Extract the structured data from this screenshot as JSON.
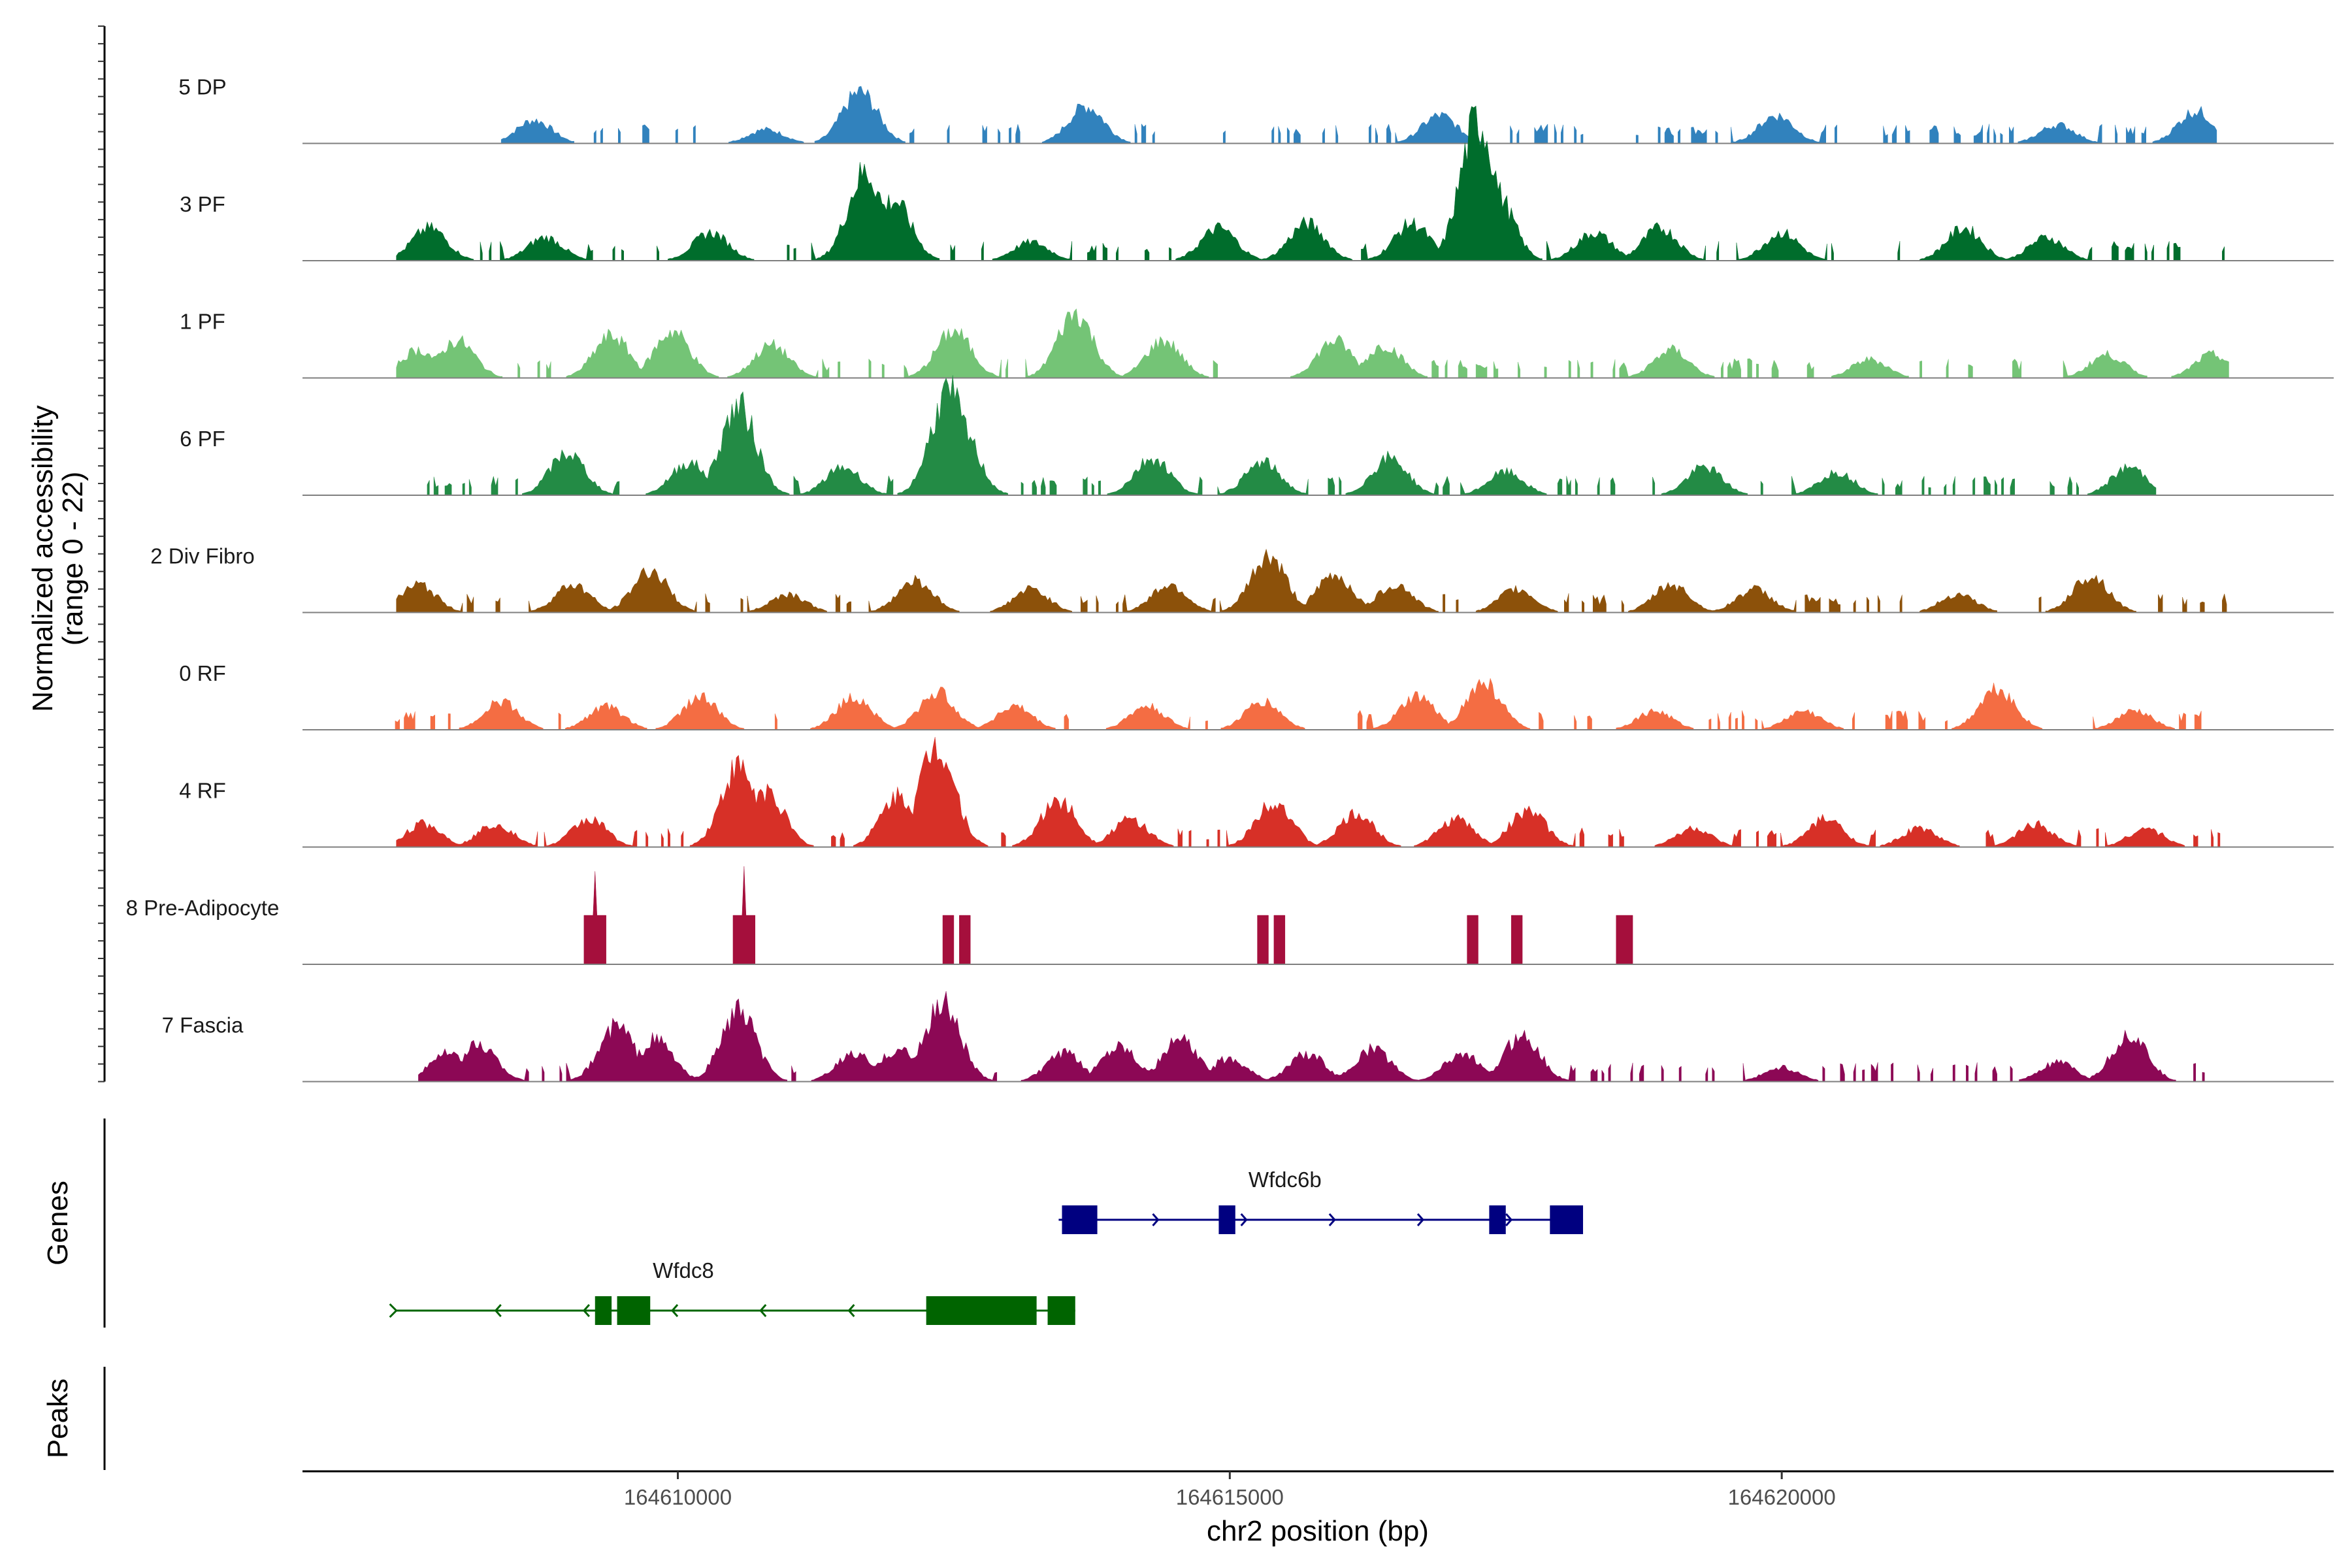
{
  "chart_data": {
    "type": "area",
    "subtype": "genome-coverage-track",
    "chromosome": "chr2",
    "xlabel": "chr2 position (bp)",
    "ylabel_line1": "Normalized accessibility",
    "ylabel_line2": "(range 0 - 22)",
    "y_range": [
      0,
      22
    ],
    "xlim": [
      164606600,
      164625000
    ],
    "x_ticks": [
      {
        "value": 164610000,
        "label": "164610000"
      },
      {
        "value": 164615000,
        "label": "164615000"
      },
      {
        "value": 164620000,
        "label": "164620000"
      }
    ],
    "series": [
      {
        "name": "5 DP",
        "color": "#3182bd",
        "data_start": 164608400,
        "data_end": 164623950,
        "peaks": [
          [
            164608700,
            5
          ],
          [
            164610800,
            3
          ],
          [
            164611650,
            11
          ],
          [
            164613700,
            8
          ],
          [
            164616900,
            6
          ],
          [
            164619950,
            6
          ],
          [
            164623750,
            7
          ],
          [
            164622500,
            4
          ]
        ]
      },
      {
        "name": "3 PF",
        "color": "#006d2c",
        "data_start": 164607450,
        "data_end": 164624050,
        "peaks": [
          [
            164607750,
            7
          ],
          [
            164608800,
            5
          ],
          [
            164610300,
            6
          ],
          [
            164611700,
            19
          ],
          [
            164611950,
            13
          ],
          [
            164613200,
            4
          ],
          [
            164614900,
            7
          ],
          [
            164615700,
            8
          ],
          [
            164616650,
            8
          ],
          [
            164617250,
            30
          ],
          [
            164617400,
            15
          ],
          [
            164618300,
            6
          ],
          [
            164618900,
            7
          ],
          [
            164620000,
            6
          ],
          [
            164621650,
            7
          ],
          [
            164622400,
            5
          ]
        ]
      },
      {
        "name": "1 PF",
        "color": "#74c476",
        "data_start": 164607450,
        "data_end": 164624050,
        "peaks": [
          [
            164607650,
            6
          ],
          [
            164608000,
            8
          ],
          [
            164609400,
            9
          ],
          [
            164609950,
            10
          ],
          [
            164610850,
            7
          ],
          [
            164612500,
            10
          ],
          [
            164613600,
            14
          ],
          [
            164614400,
            8
          ],
          [
            164615950,
            8
          ],
          [
            164616400,
            7
          ],
          [
            164619000,
            6
          ],
          [
            164620800,
            4
          ],
          [
            164622950,
            5
          ],
          [
            164623900,
            5
          ]
        ]
      },
      {
        "name": "6 PF",
        "color": "#238b45",
        "data_start": 164607650,
        "data_end": 164623400,
        "peaks": [
          [
            164609000,
            9
          ],
          [
            164610100,
            7
          ],
          [
            164610550,
            19
          ],
          [
            164611500,
            6
          ],
          [
            164612450,
            22
          ],
          [
            164612550,
            15
          ],
          [
            164614300,
            8
          ],
          [
            164615300,
            7
          ],
          [
            164616450,
            8
          ],
          [
            164617500,
            5
          ],
          [
            164619300,
            6
          ],
          [
            164620500,
            5
          ],
          [
            164623150,
            6
          ]
        ]
      },
      {
        "name": "2 Div Fibro",
        "color": "#8c510a",
        "data_start": 164607450,
        "data_end": 164624050,
        "peaks": [
          [
            164607650,
            6
          ],
          [
            164609050,
            6
          ],
          [
            164609750,
            9
          ],
          [
            164611000,
            4
          ],
          [
            164612150,
            7
          ],
          [
            164613200,
            5
          ],
          [
            164614450,
            6
          ],
          [
            164615350,
            12
          ],
          [
            164615950,
            8
          ],
          [
            164616500,
            6
          ],
          [
            164617600,
            5
          ],
          [
            164619000,
            6
          ],
          [
            164619750,
            5
          ],
          [
            164621600,
            4
          ],
          [
            164622800,
            8
          ]
        ]
      },
      {
        "name": "0 RF",
        "color": "#f46d43",
        "data_start": 164607400,
        "data_end": 164624050,
        "peaks": [
          [
            164608400,
            6
          ],
          [
            164609350,
            5
          ],
          [
            164610200,
            7
          ],
          [
            164611600,
            7
          ],
          [
            164612350,
            8
          ],
          [
            164613050,
            5
          ],
          [
            164614250,
            5
          ],
          [
            164615300,
            6
          ],
          [
            164616700,
            7
          ],
          [
            164617300,
            10
          ],
          [
            164618850,
            4
          ],
          [
            164620200,
            4
          ],
          [
            164621950,
            9
          ],
          [
            164623200,
            4
          ]
        ]
      },
      {
        "name": "4 RF",
        "color": "#d73027",
        "data_start": 164607450,
        "data_end": 164624050,
        "peaks": [
          [
            164607700,
            5
          ],
          [
            164608350,
            5
          ],
          [
            164609200,
            6
          ],
          [
            164610550,
            17
          ],
          [
            164610800,
            12
          ],
          [
            164612000,
            11
          ],
          [
            164612350,
            22
          ],
          [
            164613450,
            10
          ],
          [
            164614100,
            6
          ],
          [
            164615400,
            10
          ],
          [
            164616150,
            7
          ],
          [
            164617050,
            6
          ],
          [
            164617700,
            8
          ],
          [
            164619200,
            4
          ],
          [
            164620400,
            6
          ],
          [
            164621250,
            4
          ],
          [
            164622300,
            5
          ],
          [
            164623300,
            4
          ]
        ]
      },
      {
        "name": "8 Pre-Adipocyte",
        "color": "#a50f3c",
        "data_start": 164609000,
        "data_end": 164619000,
        "blocks": [
          [
            164609150,
            164609350,
            10,
            19
          ],
          [
            164610500,
            164610700,
            10,
            20
          ],
          [
            164612400,
            164612500,
            10,
            10
          ],
          [
            164612550,
            164612650,
            10,
            10
          ],
          [
            164615250,
            164615350,
            10,
            10
          ],
          [
            164615400,
            164615500,
            10,
            10
          ],
          [
            164617150,
            164617250,
            10,
            10
          ],
          [
            164617550,
            164617650,
            10,
            10
          ],
          [
            164618500,
            164618650,
            10,
            10
          ]
        ]
      },
      {
        "name": "7 Fascia",
        "color": "#8c0855",
        "data_start": 164607650,
        "data_end": 164624050,
        "peaks": [
          [
            164607900,
            6
          ],
          [
            164608200,
            8
          ],
          [
            164609450,
            12
          ],
          [
            164609800,
            9
          ],
          [
            164610550,
            15
          ],
          [
            164611600,
            6
          ],
          [
            164612000,
            7
          ],
          [
            164612400,
            17
          ],
          [
            164613500,
            6
          ],
          [
            164614000,
            8
          ],
          [
            164614550,
            9
          ],
          [
            164615000,
            5
          ],
          [
            164615700,
            6
          ],
          [
            164616300,
            7
          ],
          [
            164617100,
            6
          ],
          [
            164617650,
            10
          ],
          [
            164620000,
            3
          ],
          [
            164622500,
            4
          ],
          [
            164623150,
            10
          ]
        ]
      }
    ],
    "genes": [
      {
        "name": "Wfdc6b",
        "color": "#000080",
        "strand": "+",
        "start": 164613450,
        "end": 164618200,
        "exons": [
          [
            164613480,
            164613800
          ],
          [
            164614900,
            164615050
          ],
          [
            164617350,
            164617500
          ],
          [
            164617900,
            164618200
          ]
        ],
        "label_x": 164615500
      },
      {
        "name": "Wfdc8",
        "color": "#006400",
        "strand": "-",
        "start": 164607450,
        "end": 164613600,
        "exons": [
          [
            164609250,
            164609400
          ],
          [
            164609450,
            164609750
          ],
          [
            164612250,
            164613250
          ],
          [
            164613350,
            164613600
          ]
        ],
        "label_x": 164610050
      }
    ],
    "side_panels": [
      "Genes",
      "Peaks"
    ]
  }
}
